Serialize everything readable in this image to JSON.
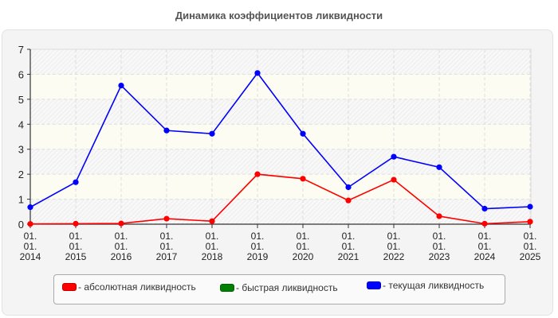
{
  "title": "Динамика коэффициентов ликвидности",
  "colors": {
    "absolute": "#ff0000",
    "quick": "#008000",
    "current": "#0000ff",
    "panel_bg": "#f4f4f4",
    "band_cream": "#fcfcf2",
    "grid": "#dddddd"
  },
  "legend": [
    {
      "label": "- абсолютная ликвидность",
      "color": "#ff0000"
    },
    {
      "label": "- быстрая ликвидность",
      "color": "#008000"
    },
    {
      "label": "- текущая ликвидность",
      "color": "#0000ff"
    }
  ],
  "chart_data": {
    "type": "line",
    "title": "Динамика коэффициентов ликвидности",
    "xlabel": "",
    "ylabel": "",
    "categories": [
      "01.01.2014",
      "01.01.2015",
      "01.01.2016",
      "01.01.2017",
      "01.01.2018",
      "01.01.2019",
      "01.01.2020",
      "01.01.2021",
      "01.01.2022",
      "01.01.2023",
      "01.01.2024",
      "01.01.2025"
    ],
    "tick_lines": [
      [
        "01.",
        "01.",
        "2014"
      ],
      [
        "01.",
        "01.",
        "2015"
      ],
      [
        "01.",
        "01.",
        "2016"
      ],
      [
        "01.",
        "01.",
        "2017"
      ],
      [
        "01.",
        "01.",
        "2018"
      ],
      [
        "01.",
        "01.",
        "2019"
      ],
      [
        "01.",
        "01.",
        "2020"
      ],
      [
        "01.",
        "01.",
        "2021"
      ],
      [
        "01.",
        "01.",
        "2022"
      ],
      [
        "01.",
        "01.",
        "2023"
      ],
      [
        "01.",
        "01.",
        "2024"
      ],
      [
        "01.",
        "01.",
        "2025"
      ]
    ],
    "yticks": [
      0,
      1,
      2,
      3,
      4,
      5,
      6,
      7
    ],
    "ylim": [
      0,
      7
    ],
    "grid": true,
    "legend_position": "bottom",
    "series": [
      {
        "name": "абсолютная ликвидность",
        "color": "#ff0000",
        "values": [
          0.01,
          0.02,
          0.03,
          0.22,
          0.12,
          2.0,
          1.82,
          0.95,
          1.78,
          0.32,
          0.02,
          0.1
        ]
      },
      {
        "name": "быстрая ликвидность",
        "color": "#008000",
        "values": []
      },
      {
        "name": "текущая ликвидность",
        "color": "#0000ff",
        "values": [
          0.68,
          1.68,
          5.55,
          3.75,
          3.62,
          6.05,
          3.62,
          1.48,
          2.7,
          2.28,
          0.62,
          0.7
        ]
      }
    ]
  }
}
